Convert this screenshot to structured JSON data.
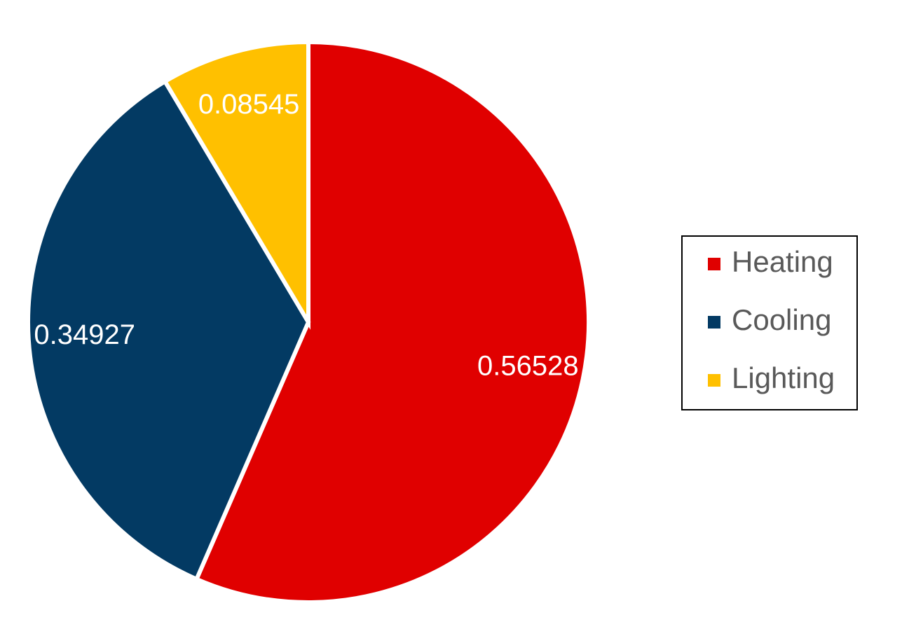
{
  "chart_data": {
    "type": "pie",
    "categories": [
      "Heating",
      "Cooling",
      "Lighting"
    ],
    "values": [
      0.56528,
      0.34927,
      0.08545
    ],
    "data_labels": [
      "0.56528",
      "0.34927",
      "0.08545"
    ],
    "colors": [
      "#e00000",
      "#033a63",
      "#ffc000"
    ],
    "start_angle_deg": 0,
    "direction": "clockwise",
    "legend": {
      "placement": "right",
      "entries": [
        "Heating",
        "Cooling",
        "Lighting"
      ]
    }
  }
}
